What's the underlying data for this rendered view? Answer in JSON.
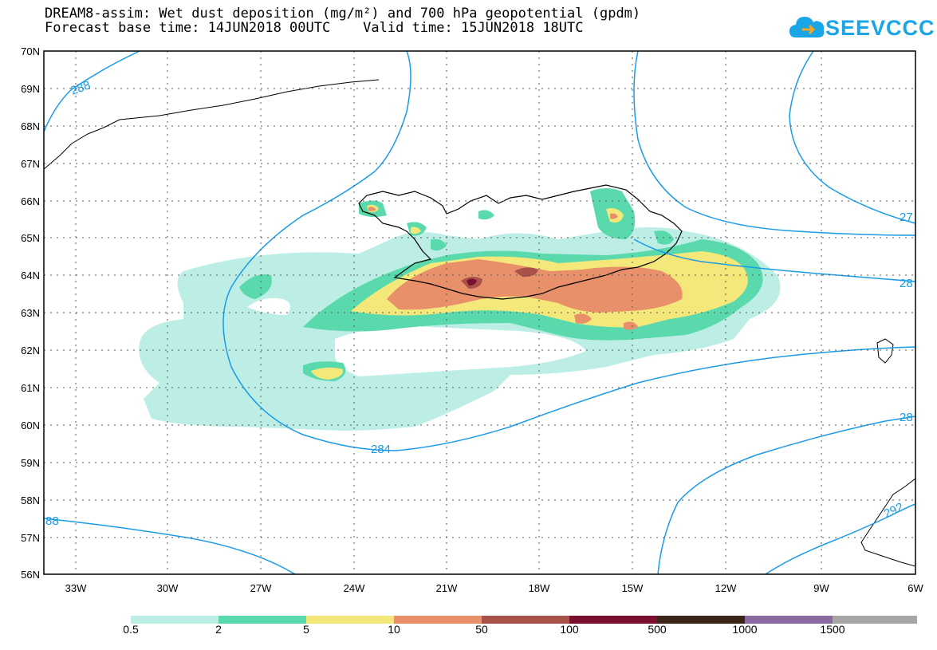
{
  "title": {
    "line1": "DREAM8-assim: Wet dust deposition (mg/m²) and 700 hPa geopotential (gpdm)",
    "line2": "Forecast base time: 14JUN2018 00UTC    Valid time: 15JUN2018 18UTC"
  },
  "logo": {
    "text": "SEEVCCC",
    "icon": "cloud-icon",
    "color": "#1aa6e6"
  },
  "map": {
    "lat_labels": [
      "70N",
      "69N",
      "68N",
      "67N",
      "66N",
      "65N",
      "64N",
      "63N",
      "62N",
      "61N",
      "60N",
      "59N",
      "58N",
      "57N",
      "56N"
    ],
    "lon_labels": [
      "33W",
      "30W",
      "27W",
      "24W",
      "21W",
      "18W",
      "15W",
      "12W",
      "9W",
      "6W"
    ],
    "contour_color": "#1a9be6",
    "contour_labels": [
      "288",
      "27",
      "28",
      "284",
      "28",
      "292",
      "88"
    ]
  },
  "colorbar": {
    "labels": [
      "0.5",
      "2",
      "5",
      "10",
      "50",
      "100",
      "500",
      "1000",
      "1500"
    ],
    "colors": [
      "#bdeee6",
      "#5ad9ad",
      "#f5e87a",
      "#e8906a",
      "#a8524a",
      "#7a0f2e",
      "#3b2418",
      "#8a6aa0",
      "#a6a6a6"
    ]
  }
}
